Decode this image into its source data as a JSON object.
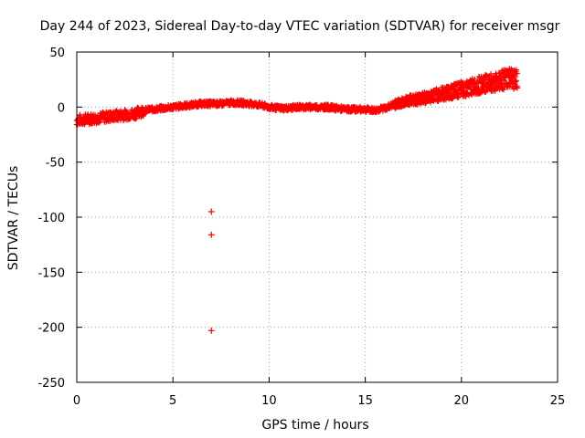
{
  "colors": {
    "series": "#ff0000",
    "grid": "#a0a0a0",
    "axes": "#000000",
    "background": "#ffffff"
  },
  "chart_data": {
    "type": "scatter",
    "title": "Day 244 of 2023, Sidereal Day-to-day VTEC variation (SDTVAR) for receiver msgr",
    "xlabel": "GPS time / hours",
    "ylabel": "SDTVAR / TECUs",
    "xlim": [
      0,
      25
    ],
    "ylim": [
      -250,
      50
    ],
    "xticks": [
      0,
      5,
      10,
      15,
      20,
      25
    ],
    "yticks": [
      -250,
      -200,
      -150,
      -100,
      -50,
      0,
      50
    ],
    "grid": true,
    "legend": "none",
    "marker": "+",
    "series": [
      {
        "name": "SDTVAR",
        "color": "#ff0000",
        "trend": [
          [
            0.0,
            -12
          ],
          [
            0.5,
            -11
          ],
          [
            1.0,
            -10
          ],
          [
            1.5,
            -9
          ],
          [
            2.0,
            -8
          ],
          [
            2.5,
            -7
          ],
          [
            3.0,
            -6
          ],
          [
            3.5,
            -3
          ],
          [
            4.0,
            -2
          ],
          [
            4.5,
            -1
          ],
          [
            5.0,
            0
          ],
          [
            5.5,
            1
          ],
          [
            6.0,
            2
          ],
          [
            6.5,
            3
          ],
          [
            7.0,
            3
          ],
          [
            7.5,
            3
          ],
          [
            8.0,
            4
          ],
          [
            8.5,
            4
          ],
          [
            9.0,
            3
          ],
          [
            9.5,
            2
          ],
          [
            10.0,
            0
          ],
          [
            10.5,
            -1
          ],
          [
            11.0,
            -1
          ],
          [
            11.5,
            0
          ],
          [
            12.0,
            0
          ],
          [
            12.5,
            0
          ],
          [
            13.0,
            0
          ],
          [
            13.5,
            -1
          ],
          [
            14.0,
            -2
          ],
          [
            14.5,
            -2
          ],
          [
            15.0,
            -2
          ],
          [
            15.5,
            -3
          ],
          [
            16.0,
            -1
          ],
          [
            16.5,
            2
          ],
          [
            17.0,
            5
          ],
          [
            17.5,
            7
          ],
          [
            18.0,
            8
          ],
          [
            18.5,
            10
          ],
          [
            19.0,
            12
          ],
          [
            19.5,
            14
          ],
          [
            20.0,
            16
          ],
          [
            20.5,
            18
          ],
          [
            21.0,
            20
          ],
          [
            21.5,
            22
          ],
          [
            22.0,
            24
          ],
          [
            22.5,
            26
          ],
          [
            22.9,
            24
          ]
        ],
        "outliers": [
          {
            "x": 7.0,
            "y": -95
          },
          {
            "x": 7.0,
            "y": -116
          },
          {
            "x": 7.0,
            "y": -203
          }
        ]
      }
    ]
  }
}
